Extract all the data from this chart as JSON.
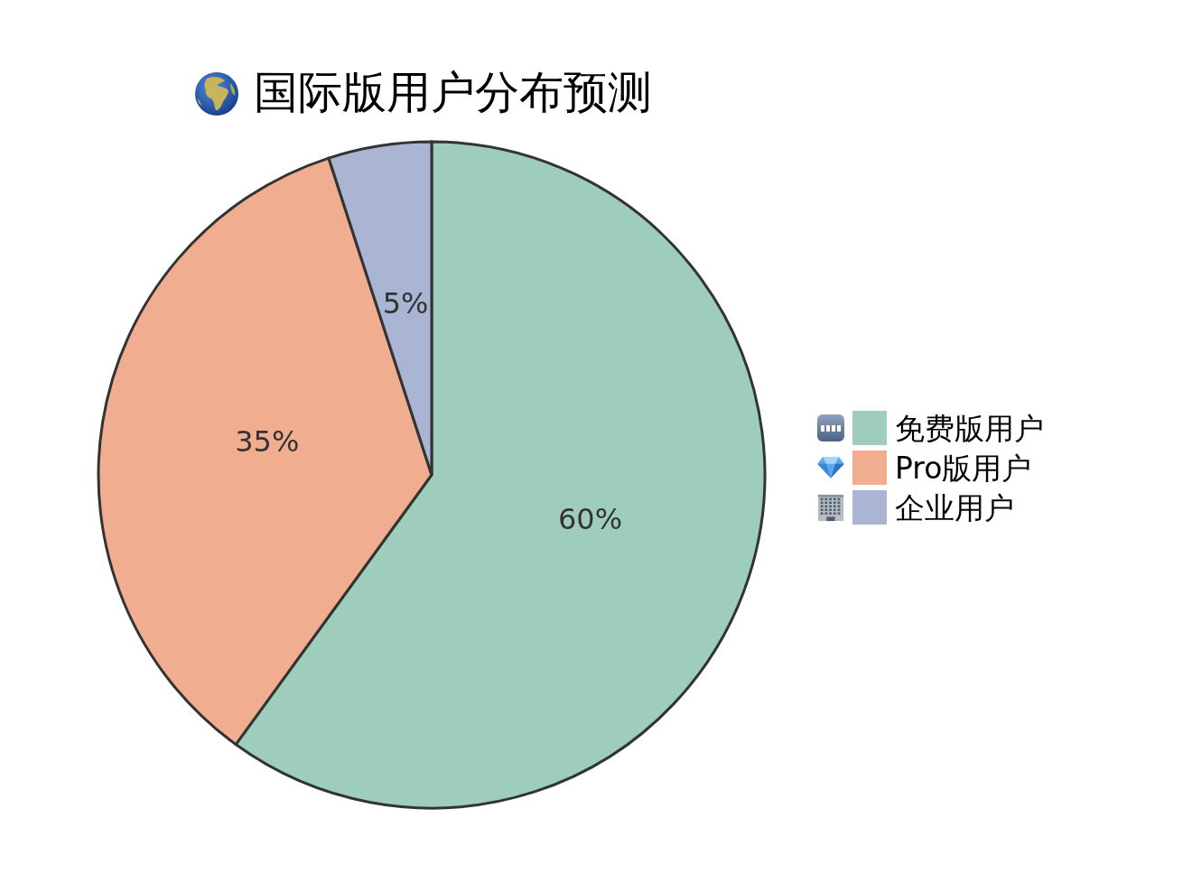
{
  "chart_data": {
    "type": "pie",
    "title": "国际版用户分布预测",
    "categories": [
      "免费版用户",
      "Pro版用户",
      "企业用户"
    ],
    "values": [
      60,
      35,
      5
    ],
    "colors": [
      "#9fcdbb",
      "#f0ad8f",
      "#a9b5d3"
    ],
    "value_labels": [
      "60%",
      "35%",
      "5%"
    ],
    "legend": "right"
  }
}
